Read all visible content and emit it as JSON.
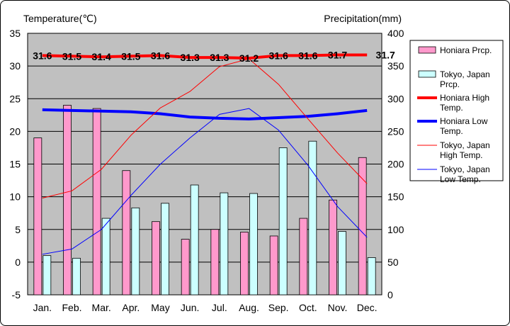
{
  "chart_data": {
    "type": "bar+line",
    "left_axis_label": "Temperature(℃)",
    "right_axis_label": "Precipitation(mm)",
    "left_ylim": [
      -5,
      35
    ],
    "right_ylim": [
      0,
      400
    ],
    "left_ticks": [
      "-5",
      "0",
      "5",
      "10",
      "15",
      "20",
      "25",
      "30",
      "35"
    ],
    "right_ticks": [
      "0",
      "50",
      "100",
      "150",
      "200",
      "250",
      "300",
      "350",
      "400"
    ],
    "categories": [
      "Jan.",
      "Feb.",
      "Mar.",
      "Apr.",
      "May",
      "Jun.",
      "Jul.",
      "Aug.",
      "Sep.",
      "Oct.",
      "Nov.",
      "Dec."
    ],
    "bar_series": [
      {
        "name": "Honiara Prcp.",
        "color": "#ff99cc",
        "values": [
          240,
          290,
          285,
          190,
          112,
          85,
          100,
          96,
          90,
          117,
          145,
          210
        ]
      },
      {
        "name": "Tokyo, Japan Prcp.",
        "color": "#ccffff",
        "values": [
          60,
          56,
          117,
          133,
          140,
          168,
          156,
          155,
          225,
          235,
          97,
          57
        ]
      }
    ],
    "line_series": [
      {
        "name": "Honiara High Temp.",
        "color": "#ff0000",
        "width": "thick",
        "values": [
          31.6,
          31.5,
          31.4,
          31.5,
          31.6,
          31.3,
          31.3,
          31.2,
          31.6,
          31.6,
          31.7,
          31.7
        ]
      },
      {
        "name": "Honiara Low Temp.",
        "color": "#0000ff",
        "width": "thick",
        "values": [
          23.3,
          23.2,
          23.1,
          23.0,
          22.7,
          22.2,
          22.0,
          21.9,
          22.1,
          22.3,
          22.7,
          23.2
        ]
      },
      {
        "name": "Tokyo, Japan High Temp.",
        "color": "#ff0000",
        "width": "thin",
        "values": [
          9.8,
          10.9,
          14.2,
          19.4,
          23.6,
          26.1,
          29.9,
          31.1,
          27.2,
          21.9,
          16.7,
          12.0
        ]
      },
      {
        "name": "Tokyo, Japan Low Temp.",
        "color": "#0000ff",
        "width": "thin",
        "values": [
          1.2,
          2.0,
          5.0,
          10.2,
          15.0,
          19.0,
          22.6,
          23.5,
          20.2,
          14.8,
          8.5,
          3.8
        ]
      }
    ],
    "data_labels": [
      "31.6",
      "31.5",
      "31.4",
      "31.5",
      "31.6",
      "31.3",
      "31.3",
      "31.2",
      "31.6",
      "31.6",
      "31.7",
      "31.7"
    ],
    "legend": [
      {
        "text": "Honiara Prcp.",
        "kind": "bar",
        "color": "#ff99cc"
      },
      {
        "text": "Tokyo, Japan Prcp.",
        "kind": "bar",
        "color": "#ccffff"
      },
      {
        "text": "Honiara High Temp.",
        "kind": "line-thick",
        "color": "#ff0000"
      },
      {
        "text": "Honiara Low Temp.",
        "kind": "line-thick",
        "color": "#0000ff"
      },
      {
        "text": "Tokyo, Japan High Temp.",
        "kind": "line-thin",
        "color": "#ff0000"
      },
      {
        "text": "Tokyo, Japan Low Temp.",
        "kind": "line-thin",
        "color": "#0000ff"
      }
    ],
    "plot_background": "#c0c0c0",
    "grid": true,
    "legend_position": "right"
  }
}
